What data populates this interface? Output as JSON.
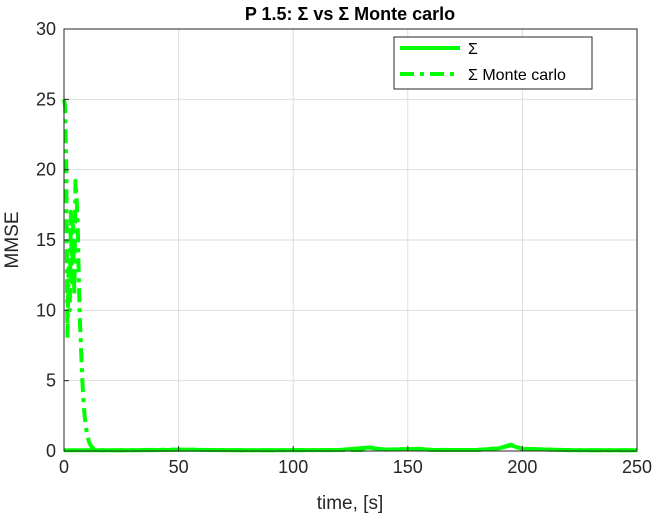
{
  "chart_data": {
    "type": "line",
    "title": "P 1.5: Σ vs Σ Monte carlo",
    "xlabel": "time, [s]",
    "ylabel": "MMSE",
    "xlim": [
      0,
      250
    ],
    "ylim": [
      0,
      30
    ],
    "xticks": [
      0,
      50,
      100,
      150,
      200,
      250
    ],
    "yticks": [
      0,
      5,
      10,
      15,
      20,
      25,
      30
    ],
    "grid": true,
    "legend_position": "top-right",
    "series": [
      {
        "name": "Σ",
        "style": "solid",
        "color": "#00ff00",
        "x": [
          0,
          10,
          20,
          30,
          40,
          50,
          55,
          60,
          80,
          100,
          120,
          133,
          135,
          140,
          155,
          160,
          180,
          190,
          195,
          200,
          220,
          240,
          250
        ],
        "y": [
          0.05,
          0.05,
          0.05,
          0.05,
          0.06,
          0.08,
          0.1,
          0.07,
          0.05,
          0.06,
          0.07,
          0.25,
          0.2,
          0.1,
          0.15,
          0.08,
          0.07,
          0.2,
          0.4,
          0.15,
          0.06,
          0.05,
          0.05
        ]
      },
      {
        "name": "Σ Monte carlo",
        "style": "dashdot",
        "color": "#00ff00",
        "x": [
          0,
          0.5,
          1,
          1.5,
          2,
          2.5,
          3,
          3.5,
          4,
          4.5,
          5,
          5.5,
          6,
          6.5,
          7,
          7.5,
          8,
          8.5,
          9,
          10,
          11,
          12,
          13,
          14,
          16,
          20,
          30,
          50,
          80,
          100,
          130,
          133,
          135,
          140,
          155,
          160,
          180,
          190,
          195,
          200,
          220,
          250
        ],
        "y": [
          25,
          24.5,
          20,
          8,
          13,
          10,
          17,
          12,
          16,
          11,
          19.2,
          18,
          16,
          12,
          9,
          7,
          5,
          3.5,
          2.5,
          1.2,
          0.6,
          0.3,
          0.15,
          0.1,
          0.05,
          0.05,
          0.06,
          0.1,
          0.05,
          0.06,
          0.07,
          0.3,
          0.2,
          0.1,
          0.15,
          0.08,
          0.07,
          0.2,
          0.45,
          0.15,
          0.06,
          0.05
        ]
      }
    ]
  }
}
